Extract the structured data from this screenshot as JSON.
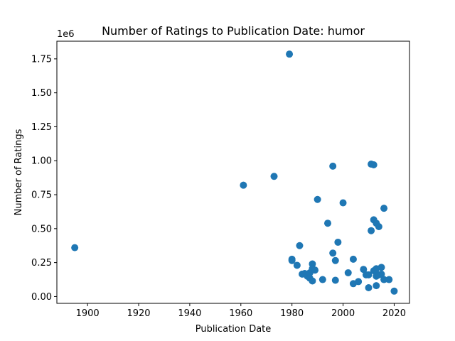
{
  "chart_data": {
    "type": "scatter",
    "title": "Number of Ratings to Publication Date: humor",
    "xlabel": "Publication Date",
    "ylabel": "Number of Ratings",
    "y_offset_label": "1e6",
    "xlim": [
      1888,
      2026
    ],
    "ylim": [
      -50000,
      1880000
    ],
    "x_ticks": [
      1900,
      1920,
      1940,
      1960,
      1980,
      2000,
      2020
    ],
    "x_tick_labels": [
      "1900",
      "1920",
      "1940",
      "1960",
      "1980",
      "2000",
      "2020"
    ],
    "y_ticks": [
      0,
      250000,
      500000,
      750000,
      1000000,
      1250000,
      1500000,
      1750000
    ],
    "y_tick_labels": [
      "0.00",
      "0.25",
      "0.50",
      "0.75",
      "1.00",
      "1.25",
      "1.50",
      "1.75"
    ],
    "point_color": "#1f77b4",
    "series": [
      {
        "name": "humor",
        "x": [
          1895,
          1961,
          1973,
          1979,
          1980,
          1980,
          1982,
          1983,
          1984,
          1985,
          1986,
          1987,
          1987,
          1988,
          1988,
          1988,
          1989,
          1990,
          1992,
          1994,
          1996,
          1996,
          1997,
          1997,
          1998,
          2000,
          2002,
          2004,
          2004,
          2006,
          2008,
          2009,
          2010,
          2010,
          2011,
          2011,
          2012,
          2012,
          2012,
          2013,
          2013,
          2013,
          2013,
          2014,
          2014,
          2015,
          2015,
          2016,
          2016,
          2018,
          2020
        ],
        "y": [
          360000,
          820000,
          885000,
          1785000,
          275000,
          265000,
          230000,
          375000,
          165000,
          170000,
          150000,
          135000,
          175000,
          240000,
          115000,
          205000,
          195000,
          715000,
          125000,
          540000,
          960000,
          320000,
          120000,
          265000,
          400000,
          690000,
          175000,
          275000,
          95000,
          110000,
          200000,
          160000,
          65000,
          160000,
          975000,
          485000,
          970000,
          565000,
          190000,
          540000,
          80000,
          150000,
          205000,
          515000,
          160000,
          215000,
          165000,
          650000,
          125000,
          125000,
          40000
        ]
      }
    ]
  }
}
